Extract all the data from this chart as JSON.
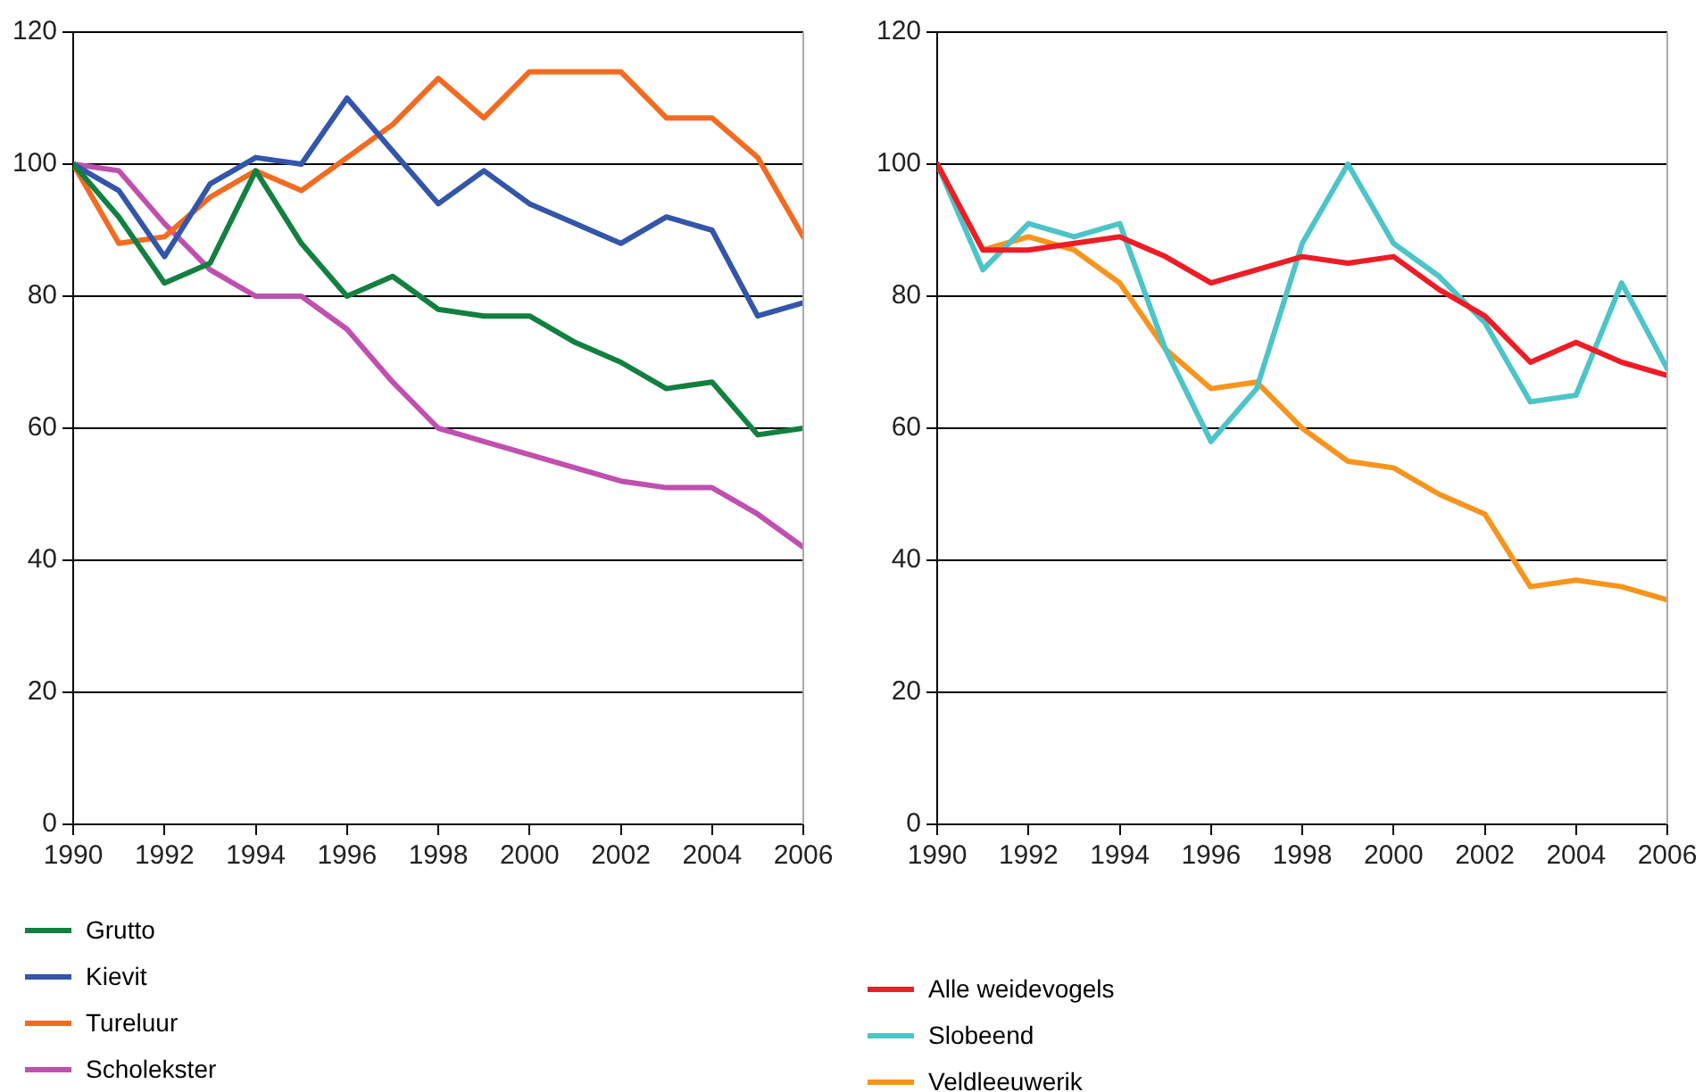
{
  "chart_data": [
    {
      "type": "line",
      "x": [
        1990,
        1991,
        1992,
        1993,
        1994,
        1995,
        1996,
        1997,
        1998,
        1999,
        2000,
        2001,
        2002,
        2003,
        2004,
        2005,
        2006
      ],
      "xlim": [
        1990,
        2006
      ],
      "xticks": [
        1990,
        1992,
        1994,
        1996,
        1998,
        2000,
        2002,
        2004,
        2006
      ],
      "ylim": [
        0,
        120
      ],
      "yticks": [
        0,
        20,
        40,
        60,
        80,
        100,
        120
      ],
      "grid": "y",
      "legend": "bottom",
      "marker": "none",
      "line_style": "solid",
      "series": [
        {
          "name": "Grutto",
          "color": "#128040",
          "values": [
            100,
            92,
            82,
            85,
            99,
            88,
            80,
            83,
            78,
            77,
            77,
            73,
            70,
            66,
            67,
            59,
            60
          ]
        },
        {
          "name": "Kievit",
          "color": "#3355aa",
          "values": [
            100,
            96,
            86,
            97,
            101,
            100,
            110,
            102,
            94,
            99,
            94,
            91,
            88,
            92,
            90,
            77,
            79
          ]
        },
        {
          "name": "Tureluur",
          "color": "#f26b21",
          "values": [
            100,
            88,
            89,
            95,
            99,
            96,
            101,
            106,
            113,
            107,
            114,
            114,
            114,
            107,
            107,
            101,
            89
          ]
        },
        {
          "name": "Scholekster",
          "color": "#c050b0",
          "values": [
            100,
            99,
            91,
            84,
            80,
            80,
            75,
            67,
            60,
            58,
            56,
            54,
            52,
            51,
            51,
            47,
            42
          ]
        }
      ]
    },
    {
      "type": "line",
      "x": [
        1990,
        1991,
        1992,
        1993,
        1994,
        1995,
        1996,
        1997,
        1998,
        1999,
        2000,
        2001,
        2002,
        2003,
        2004,
        2005,
        2006
      ],
      "xlim": [
        1990,
        2006
      ],
      "xticks": [
        1990,
        1992,
        1994,
        1996,
        1998,
        2000,
        2002,
        2004,
        2006
      ],
      "ylim": [
        0,
        120
      ],
      "yticks": [
        0,
        20,
        40,
        60,
        80,
        100,
        120
      ],
      "grid": "y",
      "legend": "bottom",
      "marker": "none",
      "line_style": "solid",
      "series": [
        {
          "name": "Alle weidevogels",
          "color": "#ee1c25",
          "values": [
            100,
            87,
            87,
            88,
            89,
            86,
            82,
            84,
            86,
            85,
            86,
            81,
            77,
            70,
            73,
            70,
            68
          ]
        },
        {
          "name": "Slobeend",
          "color": "#4cc4c8",
          "values": [
            100,
            84,
            91,
            89,
            91,
            72,
            58,
            66,
            88,
            100,
            88,
            83,
            76,
            64,
            65,
            82,
            69
          ]
        },
        {
          "name": "Veldleeuwerik",
          "color": "#f7941d",
          "values": [
            100,
            87,
            89,
            87,
            82,
            72,
            66,
            67,
            60,
            55,
            54,
            50,
            47,
            36,
            37,
            36,
            34
          ]
        }
      ]
    }
  ]
}
